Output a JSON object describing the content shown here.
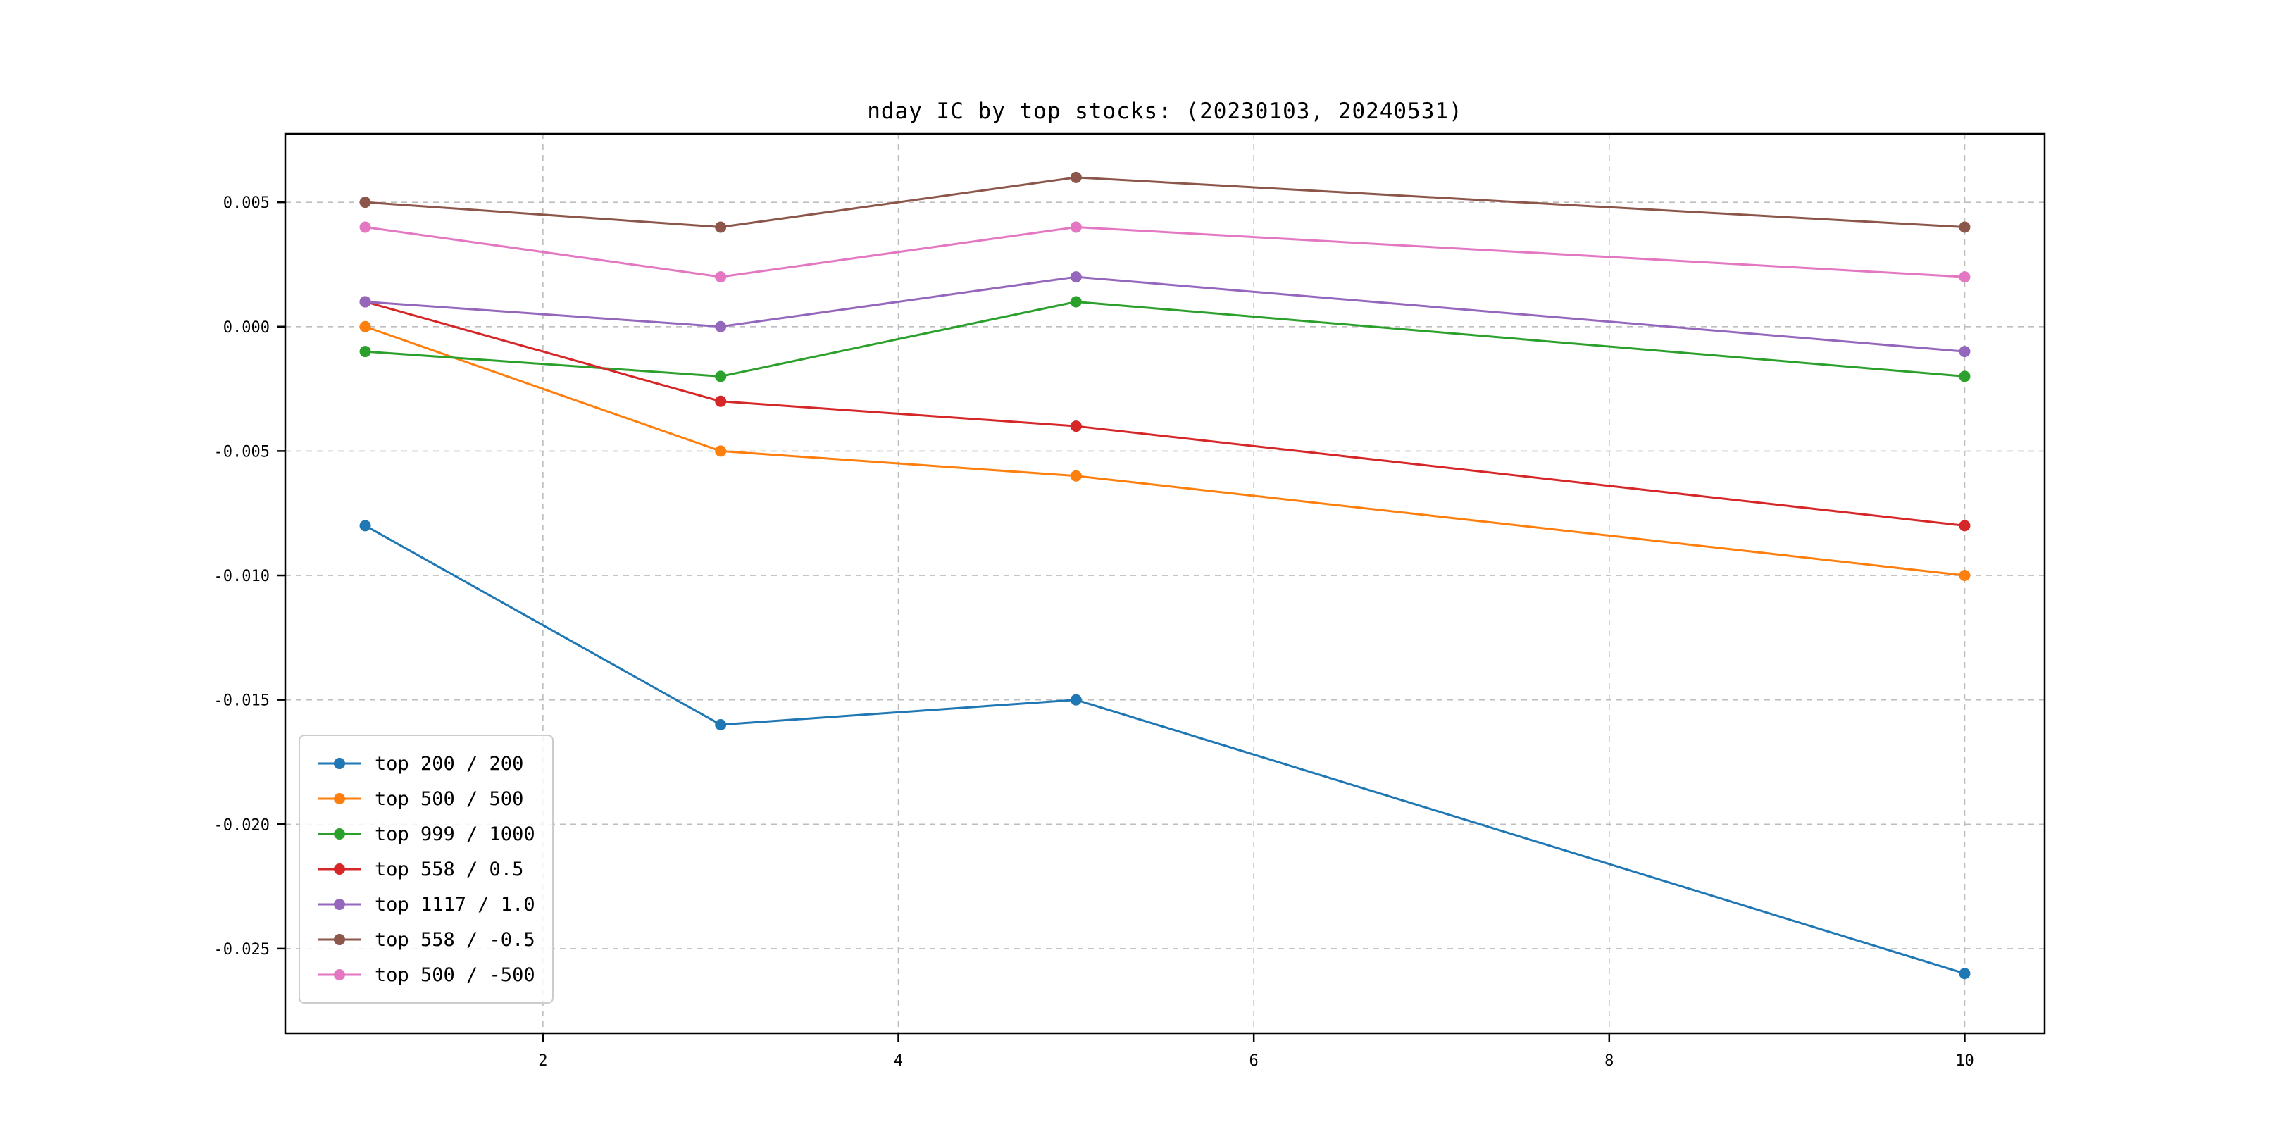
{
  "page": {
    "background_color": "#ffffff"
  },
  "chart_data": {
    "type": "line",
    "title": "nday IC by top stocks: (20230103, 20240531)",
    "xlabel": "",
    "ylabel": "",
    "x": [
      1,
      3,
      5,
      10
    ],
    "series": [
      {
        "name": "top 200 / 200",
        "color": "#1f77b4",
        "values": [
          -0.008,
          -0.016,
          -0.015,
          -0.026
        ]
      },
      {
        "name": "top 500 / 500",
        "color": "#ff7f0e",
        "values": [
          0.0,
          -0.005,
          -0.006,
          -0.01
        ]
      },
      {
        "name": "top 999 / 1000",
        "color": "#2ca02c",
        "values": [
          -0.001,
          -0.002,
          0.001,
          -0.002
        ]
      },
      {
        "name": "top 558 / 0.5",
        "color": "#d62728",
        "values": [
          0.001,
          -0.003,
          -0.004,
          -0.008
        ]
      },
      {
        "name": "top 1117 / 1.0",
        "color": "#9467bd",
        "values": [
          0.001,
          0.0,
          0.002,
          -0.001
        ]
      },
      {
        "name": "top 558 / -0.5",
        "color": "#8c564b",
        "values": [
          0.005,
          0.004,
          0.006,
          0.004
        ]
      },
      {
        "name": "top 500 / -500",
        "color": "#e377c2",
        "values": [
          0.004,
          0.002,
          0.004,
          0.002
        ]
      }
    ],
    "xlim": [
      0.55,
      10.45
    ],
    "ylim": [
      -0.0284,
      0.00775
    ],
    "xticks": {
      "values": [
        2,
        4,
        6,
        8,
        10
      ],
      "labels": [
        "2",
        "4",
        "6",
        "8",
        "10"
      ]
    },
    "yticks": {
      "values": [
        0.005,
        0.0,
        -0.005,
        -0.01,
        -0.015,
        -0.02,
        -0.025
      ],
      "labels": [
        "0.005",
        "0.000",
        "-0.005",
        "-0.010",
        "-0.015",
        "-0.020",
        "-0.025"
      ]
    },
    "grid": true,
    "grid_style": "dashed",
    "legend_position": "lower left",
    "marker": "circle"
  }
}
